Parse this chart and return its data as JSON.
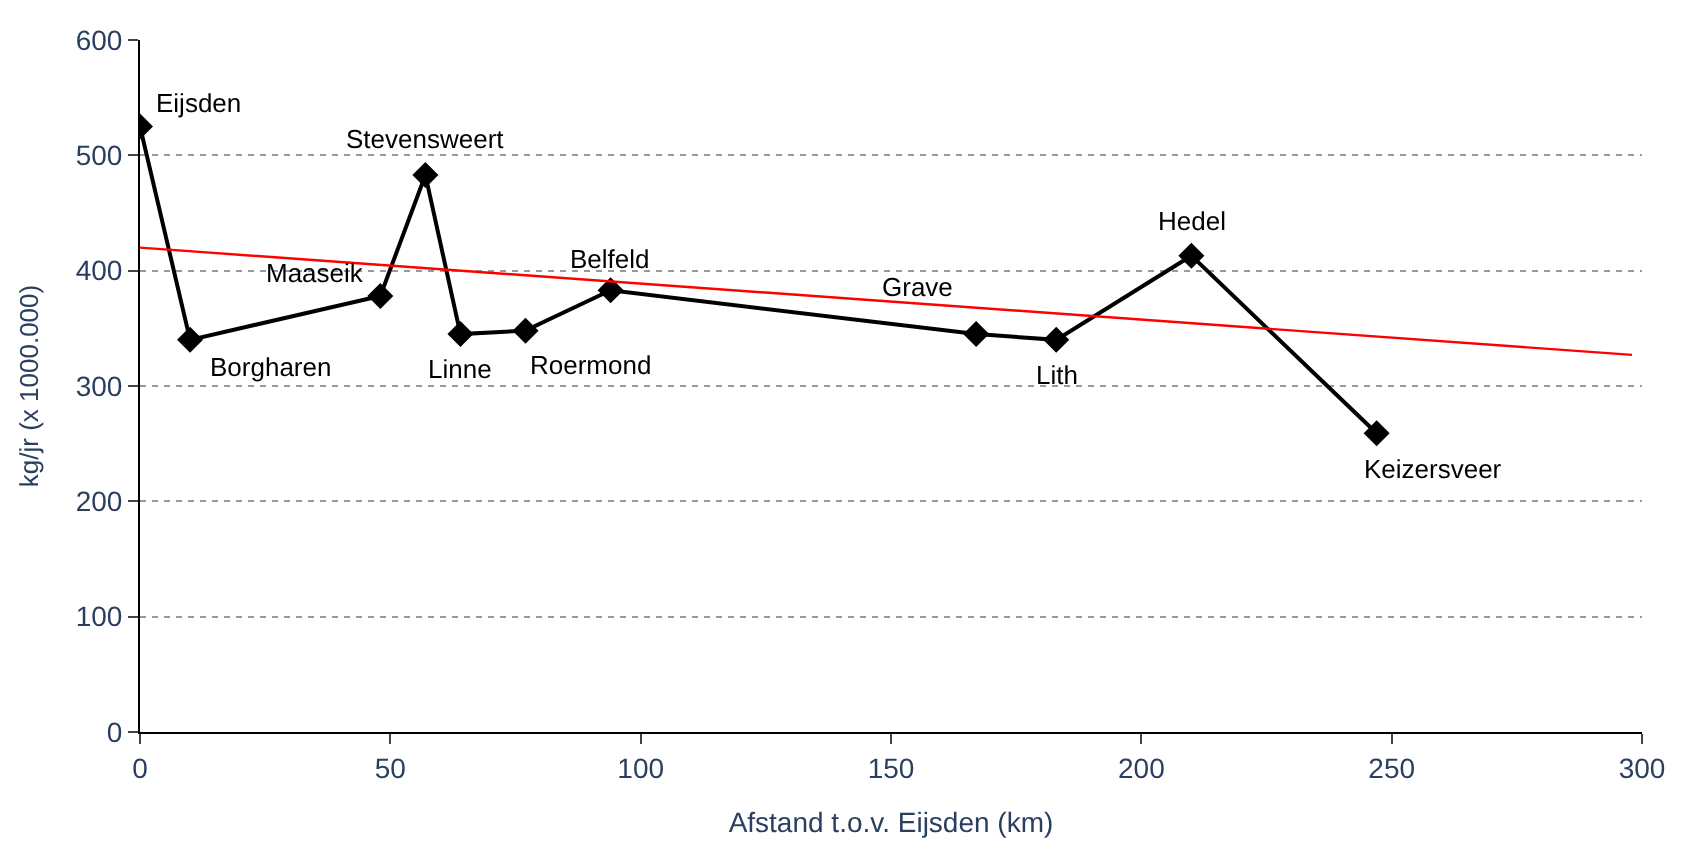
{
  "chart_data": {
    "type": "line",
    "xlabel": "Afstand t.o.v. Eijsden (km)",
    "ylabel": "kg/jr (x 1000.000)",
    "xlim": [
      0,
      300
    ],
    "xticks": [
      0,
      50,
      100,
      150,
      200,
      250,
      300
    ],
    "ylim": [
      0,
      600
    ],
    "yticks": [
      0,
      100,
      200,
      300,
      400,
      500,
      600
    ],
    "grid": "y",
    "marker": "diamond",
    "line_style": "solid",
    "series": [
      {
        "color": "#000000",
        "x": [
          0,
          10,
          48,
          57,
          64,
          77,
          94,
          167,
          183,
          210,
          247
        ],
        "values": [
          525,
          340,
          378,
          483,
          345,
          348,
          383,
          345,
          340,
          413,
          259
        ]
      },
      {
        "color": "#ff0000",
        "marker": "none",
        "x": [
          0,
          298
        ],
        "values": [
          420,
          327
        ]
      }
    ],
    "annotations": [
      {
        "text": "Eijsden",
        "x": 0,
        "y": 525
      },
      {
        "text": "Borgharen",
        "x": 10,
        "y": 340
      },
      {
        "text": "Maaseik",
        "x": 48,
        "y": 378
      },
      {
        "text": "Stevensweert",
        "x": 57,
        "y": 483
      },
      {
        "text": "Linne",
        "x": 64,
        "y": 345
      },
      {
        "text": "Roermond",
        "x": 77,
        "y": 348
      },
      {
        "text": "Belfeld",
        "x": 94,
        "y": 383
      },
      {
        "text": "Grave",
        "x": 167,
        "y": 345
      },
      {
        "text": "Lith",
        "x": 183,
        "y": 340
      },
      {
        "text": "Hedel",
        "x": 210,
        "y": 413
      },
      {
        "text": "Keizersveer",
        "x": 247,
        "y": 259
      }
    ]
  }
}
